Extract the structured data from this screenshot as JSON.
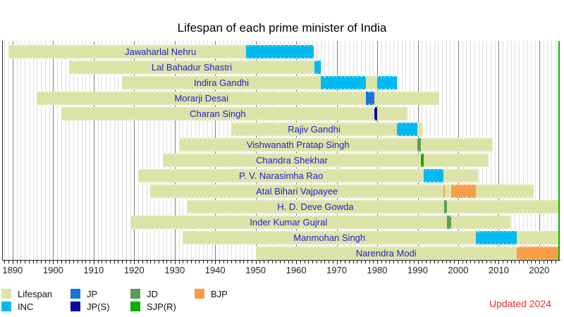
{
  "chart_data": {
    "type": "timeline",
    "title": "Lifespan of each prime minister of India",
    "x_min": 1887.4,
    "x_max": 2024.9,
    "now_year": 2024.85,
    "grid_year_start": 1888,
    "grid_year_end": 2024,
    "axis_tick_labels": [
      "1890",
      "1900",
      "1910",
      "1920",
      "1930",
      "1940",
      "1950",
      "1960",
      "1970",
      "1980",
      "1990",
      "2000",
      "2010",
      "2020"
    ],
    "axis_label_year_start": 1890,
    "axis_label_year_step": 10,
    "rows": [
      {
        "name": "Jawaharlal Nehru",
        "birth": 1889,
        "death": 1964.4,
        "label_center_year": 1926.5,
        "segments": [
          {
            "party": "INC",
            "start": 1947.6,
            "end": 1964.4
          }
        ]
      },
      {
        "name": "Lal Bahadur Shastri",
        "birth": 1904,
        "death": 1966.05,
        "segments": [
          {
            "party": "INC",
            "start": 1964.45,
            "end": 1966.05
          }
        ]
      },
      {
        "name": "Indira Gandhi",
        "birth": 1917,
        "death": 1984.85,
        "segments": [
          {
            "party": "INC",
            "start": 1966.05,
            "end": 1977.2
          },
          {
            "party": "INC",
            "start": 1980.05,
            "end": 1984.85
          }
        ]
      },
      {
        "name": "Morarji Desai",
        "birth": 1896,
        "death": 1995.3,
        "segments": [
          {
            "party": "JP",
            "start": 1977.2,
            "end": 1979.3
          }
        ]
      },
      {
        "name": "Charan Singh",
        "birth": 1902,
        "death": 1987.4,
        "segments": [
          {
            "party": "JP(S)",
            "start": 1979.3,
            "end": 1980.05
          }
        ]
      },
      {
        "name": "Rajiv Gandhi",
        "birth": 1944,
        "death": 1991.4,
        "segments": [
          {
            "party": "INC",
            "start": 1984.85,
            "end": 1989.9
          }
        ]
      },
      {
        "name": "Vishwanath Pratap Singh",
        "birth": 1931,
        "death": 2008.6,
        "segments": [
          {
            "party": "JD",
            "start": 1989.9,
            "end": 1990.85
          }
        ]
      },
      {
        "name": "Chandra Shekhar",
        "birth": 1927,
        "death": 2007.5,
        "segments": [
          {
            "party": "SJP(R)",
            "start": 1990.85,
            "end": 1991.5
          }
        ]
      },
      {
        "name": "P. V. Narasimha Rao",
        "birth": 1921,
        "death": 2004.95,
        "segments": [
          {
            "party": "INC",
            "start": 1991.5,
            "end": 1996.4
          }
        ]
      },
      {
        "name": "Atal Bihari Vajpayee",
        "birth": 1924,
        "death": 2018.6,
        "segments": [
          {
            "party": "BJP",
            "start": 1996.37,
            "end": 1996.55
          },
          {
            "party": "BJP",
            "start": 1998.2,
            "end": 2004.4
          }
        ]
      },
      {
        "name": "H. D. Deve Gowda",
        "birth": 1933,
        "death": null,
        "segments": [
          {
            "party": "JD",
            "start": 1996.5,
            "end": 1997.25
          }
        ]
      },
      {
        "name": "Inder Kumar Gujral",
        "birth": 1919,
        "death": 2012.9,
        "segments": [
          {
            "party": "JD",
            "start": 1997.25,
            "end": 1998.2
          }
        ]
      },
      {
        "name": "Manmohan Singh",
        "birth": 1932,
        "death": null,
        "segments": [
          {
            "party": "INC",
            "start": 2004.4,
            "end": 2014.4
          }
        ]
      },
      {
        "name": "Narendra Modi",
        "birth": 1950,
        "death": null,
        "segments": [
          {
            "party": "BJP",
            "start": 2014.4,
            "end": 2024.85
          }
        ]
      }
    ]
  },
  "legend": {
    "items": [
      {
        "label": "Lifespan",
        "color_key": "lifespan",
        "col": 0,
        "row": 0
      },
      {
        "label": "INC",
        "color_key": "inc",
        "col": 0,
        "row": 1
      },
      {
        "label": "JP",
        "color_key": "jp",
        "col": 1,
        "row": 0
      },
      {
        "label": "JP(S)",
        "color_key": "jps",
        "col": 1,
        "row": 1
      },
      {
        "label": "JD",
        "color_key": "jd",
        "col": 2,
        "row": 0
      },
      {
        "label": "SJP(R)",
        "color_key": "sjpr",
        "col": 2,
        "row": 1
      },
      {
        "label": "BJP",
        "color_key": "bjp",
        "col": 3,
        "row": 0
      }
    ]
  },
  "updated_note": "Updated 2024",
  "colors": {
    "lifespan": "#dce3a7",
    "inc": "#00b9ef",
    "jp": "#1a75d2",
    "jps": "#0c0c99",
    "jd": "#5b9b58",
    "sjpr": "#0cae0c",
    "bjp": "#f99e48",
    "now_line": "#00b800",
    "bar_label": "#2222cc",
    "grid_minor": "#dedede",
    "grid_major": "#7d7d7d",
    "updated_note": "#e8312a"
  },
  "party_color_keys": {
    "INC": "inc",
    "JP": "jp",
    "JP(S)": "jps",
    "JD": "jd",
    "SJP(R)": "sjpr",
    "BJP": "bjp"
  }
}
